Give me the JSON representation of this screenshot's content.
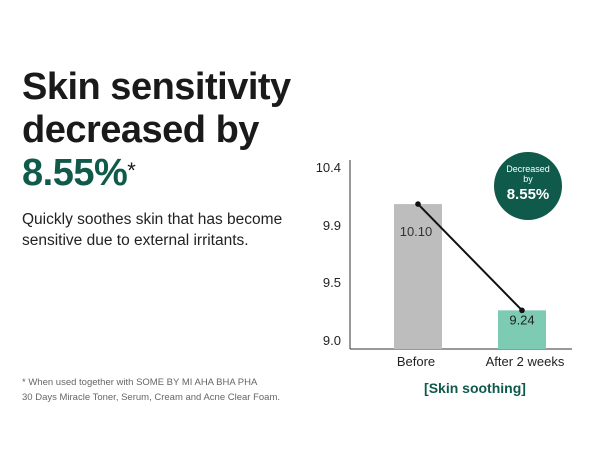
{
  "headline": {
    "line1": "Skin sensitivity",
    "line2": "decreased by",
    "percent": "8.55%",
    "asterisk": "*"
  },
  "description": "Quickly soothes skin that has become sensitive due to external irritants.",
  "footnote": {
    "line1": "* When used together with SOME BY MI AHA BHA PHA",
    "line2": "30 Days Miracle Toner, Serum, Cream and Acne Clear Foam."
  },
  "badge": {
    "line1": "Decreased",
    "line2": "by",
    "value": "8.55%"
  },
  "colors": {
    "accent": "#0f5a4a",
    "bar_before": "#bdbdbd",
    "bar_after": "#7ecbb4",
    "trend_line": "#111111"
  },
  "chart_data": {
    "type": "bar",
    "title": "[Skin soothing]",
    "categories": [
      "Before",
      "After 2 weeks"
    ],
    "values": [
      10.1,
      9.24
    ],
    "value_labels": [
      "10.10",
      "9.24"
    ],
    "yticks": [
      "10.4",
      "9.9",
      "9.5",
      "9.0"
    ],
    "ylim": [
      9.0,
      10.4
    ],
    "xlabel": "",
    "ylabel": "",
    "grid": false,
    "trend_line": true
  }
}
